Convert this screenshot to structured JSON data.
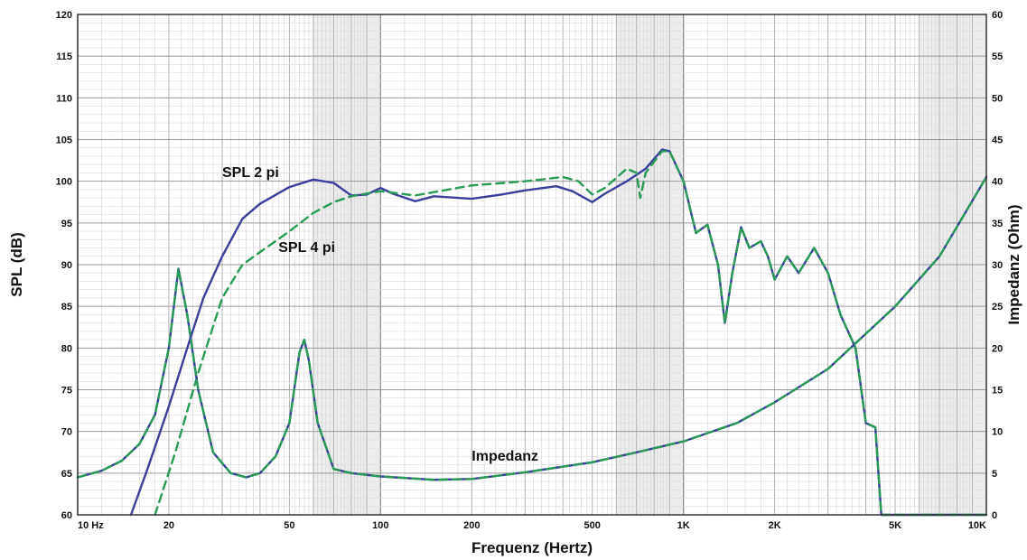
{
  "chart_data": {
    "type": "line",
    "x_scale": "log",
    "xlabel": "Frequenz (Hertz)",
    "ylabel": "SPL (dB)",
    "y2label": "Impedanz (Ohm)",
    "xlim": [
      10,
      10000
    ],
    "ylim": [
      60,
      120
    ],
    "y2lim": [
      0,
      60
    ],
    "grid": true,
    "x_ticks": [
      {
        "value": 10,
        "label": "10  Hz"
      },
      {
        "value": 20,
        "label": "20"
      },
      {
        "value": 50,
        "label": "50"
      },
      {
        "value": 100,
        "label": "100"
      },
      {
        "value": 200,
        "label": "200"
      },
      {
        "value": 500,
        "label": "500"
      },
      {
        "value": 1000,
        "label": "1K"
      },
      {
        "value": 2000,
        "label": "2K"
      },
      {
        "value": 5000,
        "label": "5K"
      },
      {
        "value": 10000,
        "label": "10K"
      }
    ],
    "y_ticks": [
      "60",
      "65",
      "70",
      "75",
      "80",
      "85",
      "90",
      "95",
      "100",
      "105",
      "110",
      "115",
      "120"
    ],
    "y2_ticks": [
      "0",
      "5",
      "10",
      "15",
      "20",
      "25",
      "30",
      "35",
      "40",
      "45",
      "50",
      "55",
      "60"
    ],
    "annotations": [
      {
        "text": "SPL 2 pi",
        "x": 30,
        "y": 100.5
      },
      {
        "text": "SPL 4 pi",
        "x": 46,
        "y": 91.5
      },
      {
        "text": "Impedanz",
        "x": 200,
        "y": 66.5
      }
    ],
    "series": [
      {
        "axis": "left",
        "color": "#3a3f9a",
        "dash": "solid",
        "points": [
          [
            15,
            60
          ],
          [
            17,
            65.5
          ],
          [
            20,
            73
          ],
          [
            23,
            80
          ],
          [
            26,
            86
          ],
          [
            30,
            91
          ],
          [
            35,
            95.5
          ],
          [
            40,
            97.3
          ],
          [
            50,
            99.3
          ],
          [
            60,
            100.2
          ],
          [
            70,
            99.8
          ],
          [
            80,
            98.3
          ],
          [
            90,
            98.4
          ],
          [
            100,
            99.2
          ],
          [
            110,
            98.5
          ],
          [
            130,
            97.6
          ],
          [
            150,
            98.2
          ],
          [
            200,
            97.9
          ],
          [
            250,
            98.4
          ],
          [
            300,
            98.9
          ],
          [
            380,
            99.4
          ],
          [
            430,
            98.8
          ],
          [
            500,
            97.5
          ],
          [
            550,
            98.5
          ],
          [
            650,
            100
          ],
          [
            750,
            101.5
          ],
          [
            850,
            103.8
          ],
          [
            900,
            103.6
          ],
          [
            1000,
            100
          ],
          [
            1100,
            93.8
          ],
          [
            1200,
            94.8
          ],
          [
            1300,
            90
          ],
          [
            1370,
            83
          ],
          [
            1450,
            89
          ],
          [
            1550,
            94.5
          ],
          [
            1650,
            92
          ],
          [
            1800,
            92.8
          ],
          [
            1900,
            91
          ],
          [
            2000,
            88.2
          ],
          [
            2200,
            91
          ],
          [
            2400,
            89
          ],
          [
            2700,
            92
          ],
          [
            3000,
            89
          ],
          [
            3300,
            84
          ],
          [
            3700,
            80
          ],
          [
            4000,
            71
          ],
          [
            4300,
            70.5
          ],
          [
            4500,
            60
          ],
          [
            10000,
            60
          ]
        ]
      },
      {
        "axis": "left",
        "color": "#2a9a55",
        "dash": "dashed",
        "points": [
          [
            18,
            60
          ],
          [
            21,
            67.5
          ],
          [
            25,
            77
          ],
          [
            30,
            86
          ],
          [
            35,
            90
          ],
          [
            40,
            91.5
          ],
          [
            50,
            94
          ],
          [
            60,
            96.2
          ],
          [
            70,
            97.5
          ],
          [
            80,
            98.2
          ],
          [
            100,
            98.8
          ],
          [
            130,
            98.3
          ],
          [
            200,
            99.5
          ],
          [
            300,
            100
          ],
          [
            400,
            100.5
          ],
          [
            450,
            100
          ],
          [
            500,
            98.4
          ],
          [
            550,
            99.2
          ],
          [
            650,
            101.5
          ],
          [
            700,
            101
          ],
          [
            720,
            98
          ],
          [
            750,
            101
          ],
          [
            850,
            103.6
          ],
          [
            900,
            103.6
          ],
          [
            1000,
            100
          ],
          [
            1100,
            93.8
          ],
          [
            1200,
            94.8
          ],
          [
            1300,
            90
          ],
          [
            1370,
            83
          ],
          [
            1450,
            89
          ],
          [
            1550,
            94.5
          ],
          [
            1650,
            92
          ],
          [
            1800,
            92.8
          ],
          [
            1900,
            91
          ],
          [
            2000,
            88.2
          ],
          [
            2200,
            91
          ],
          [
            2400,
            89
          ],
          [
            2700,
            92
          ],
          [
            3000,
            89
          ],
          [
            3300,
            84
          ],
          [
            3700,
            80
          ],
          [
            4000,
            71
          ],
          [
            4300,
            70.5
          ],
          [
            4500,
            60
          ],
          [
            10000,
            60
          ]
        ]
      },
      {
        "axis": "right",
        "color": "#3a3f9a",
        "dash": "solid",
        "points": [
          [
            10,
            4.5
          ],
          [
            12,
            5.3
          ],
          [
            14,
            6.5
          ],
          [
            16,
            8.5
          ],
          [
            18,
            12
          ],
          [
            20,
            20
          ],
          [
            21.5,
            29.5
          ],
          [
            23,
            24
          ],
          [
            25,
            15
          ],
          [
            28,
            7.5
          ],
          [
            32,
            5
          ],
          [
            36,
            4.5
          ],
          [
            40,
            5
          ],
          [
            45,
            7
          ],
          [
            50,
            11
          ],
          [
            54,
            19.5
          ],
          [
            56,
            21
          ],
          [
            58,
            18.5
          ],
          [
            62,
            11
          ],
          [
            70,
            5.5
          ],
          [
            80,
            5
          ],
          [
            100,
            4.6
          ],
          [
            150,
            4.2
          ],
          [
            200,
            4.3
          ],
          [
            300,
            5.1
          ],
          [
            500,
            6.3
          ],
          [
            700,
            7.5
          ],
          [
            1000,
            8.8
          ],
          [
            1500,
            11
          ],
          [
            2000,
            13.5
          ],
          [
            3000,
            17.5
          ],
          [
            5000,
            25
          ],
          [
            7000,
            31
          ],
          [
            10000,
            40.5
          ]
        ]
      },
      {
        "axis": "right",
        "color": "#2a9a55",
        "dash": "dashed",
        "points": [
          [
            10,
            4.5
          ],
          [
            12,
            5.3
          ],
          [
            14,
            6.5
          ],
          [
            16,
            8.5
          ],
          [
            18,
            12
          ],
          [
            20,
            20
          ],
          [
            21.5,
            29.5
          ],
          [
            23,
            24
          ],
          [
            25,
            15
          ],
          [
            28,
            7.5
          ],
          [
            32,
            5
          ],
          [
            36,
            4.5
          ],
          [
            40,
            5
          ],
          [
            45,
            7
          ],
          [
            50,
            11
          ],
          [
            54,
            19.5
          ],
          [
            56,
            21
          ],
          [
            58,
            18.5
          ],
          [
            62,
            11
          ],
          [
            70,
            5.5
          ],
          [
            80,
            5
          ],
          [
            100,
            4.6
          ],
          [
            150,
            4.2
          ],
          [
            200,
            4.3
          ],
          [
            300,
            5.1
          ],
          [
            500,
            6.3
          ],
          [
            700,
            7.5
          ],
          [
            1000,
            8.8
          ],
          [
            1500,
            11
          ],
          [
            2000,
            13.5
          ],
          [
            3000,
            17.5
          ],
          [
            5000,
            25
          ],
          [
            7000,
            31
          ],
          [
            10000,
            40.5
          ]
        ]
      }
    ]
  }
}
